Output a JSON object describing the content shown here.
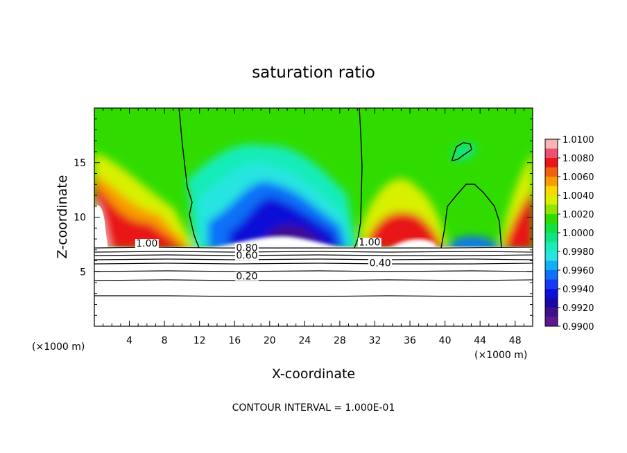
{
  "chart_data": {
    "type": "heatmap",
    "title": "saturation ratio",
    "xlabel": "X-coordinate",
    "ylabel": "Z-coordinate",
    "x_unit_label_left": "(×1000 m)",
    "x_unit_label_right": "(×1000 m)",
    "xlim": [
      0,
      50
    ],
    "ylim": [
      0,
      20
    ],
    "x_ticks": [
      4,
      8,
      12,
      16,
      20,
      24,
      28,
      32,
      36,
      40,
      44,
      48
    ],
    "y_ticks": [
      5,
      10,
      15
    ],
    "colorbar": {
      "labels": [
        "1.0100",
        "1.0080",
        "1.0060",
        "1.0040",
        "1.0020",
        "1.0000",
        "0.9980",
        "0.9960",
        "0.9940",
        "0.9920",
        "0.9900"
      ],
      "colors": [
        "#f8b4b4",
        "#f05070",
        "#e81818",
        "#f06010",
        "#f89c00",
        "#f8d800",
        "#d8f000",
        "#90e400",
        "#30dc00",
        "#10e040",
        "#10e484",
        "#18ecb8",
        "#28e4e0",
        "#10b0f8",
        "#1070f8",
        "#1838f8",
        "#0c10d8",
        "#1808a8",
        "#40108c",
        "#601890"
      ]
    },
    "contour_levels_below": [
      {
        "label": "1.00"
      },
      {
        "label": "0.80"
      },
      {
        "label": "0.60"
      },
      {
        "label": "0.40"
      },
      {
        "label": "0.20"
      }
    ],
    "contour_labels": [
      {
        "text": "1.00",
        "x": 6.0,
        "y": 7.3
      },
      {
        "text": "0.80",
        "x": 17.4,
        "y": 6.9
      },
      {
        "text": "0.60",
        "x": 17.4,
        "y": 6.2
      },
      {
        "text": "1.00",
        "x": 31.4,
        "y": 7.4
      },
      {
        "text": "0.40",
        "x": 32.6,
        "y": 5.5
      },
      {
        "text": "0.20",
        "x": 17.4,
        "y": 4.3
      }
    ],
    "note": "CONTOUR INTERVAL = 1.000E-01"
  }
}
